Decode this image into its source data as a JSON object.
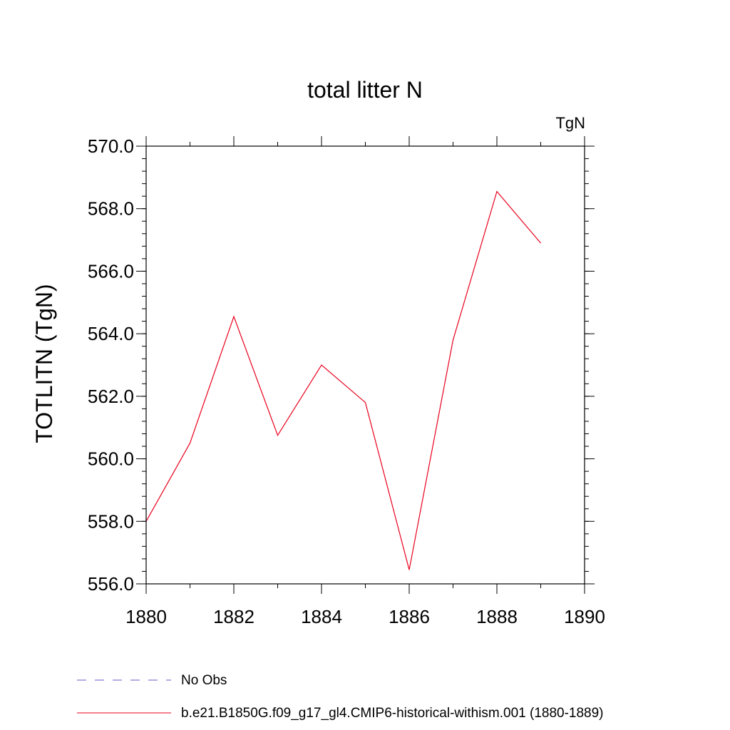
{
  "chart_data": {
    "type": "line",
    "title": "total litter N",
    "units": "TgN",
    "xlabel": "",
    "ylabel": "TOTLITN  (TgN)",
    "xlim": [
      1880,
      1890
    ],
    "ylim": [
      556.0,
      570.0
    ],
    "x_ticks": [
      "1880",
      "1882",
      "1884",
      "1886",
      "1888",
      "1890"
    ],
    "y_ticks": [
      "556.0",
      "558.0",
      "560.0",
      "562.0",
      "564.0",
      "566.0",
      "568.0",
      "570.0"
    ],
    "grid": false,
    "legend_placement": "bottom",
    "series": [
      {
        "name": "b.e21.B1850G.f09_g17_gl4.CMIP6-historical-withism.001 (1880-1889)",
        "color": "#e8001c",
        "x": [
          1880,
          1881,
          1882,
          1883,
          1884,
          1885,
          1886,
          1887,
          1888,
          1889
        ],
        "values": [
          558.0,
          560.5,
          564.55,
          560.75,
          563.0,
          561.8,
          556.45,
          563.8,
          568.55,
          566.9
        ]
      }
    ],
    "legend": [
      {
        "label": "No Obs",
        "style": "dashed",
        "color": "#6a5acd"
      },
      {
        "label": "b.e21.B1850G.f09_g17_gl4.CMIP6-historical-withism.001 (1880-1889)",
        "style": "solid",
        "color": "#e8001c"
      }
    ]
  }
}
